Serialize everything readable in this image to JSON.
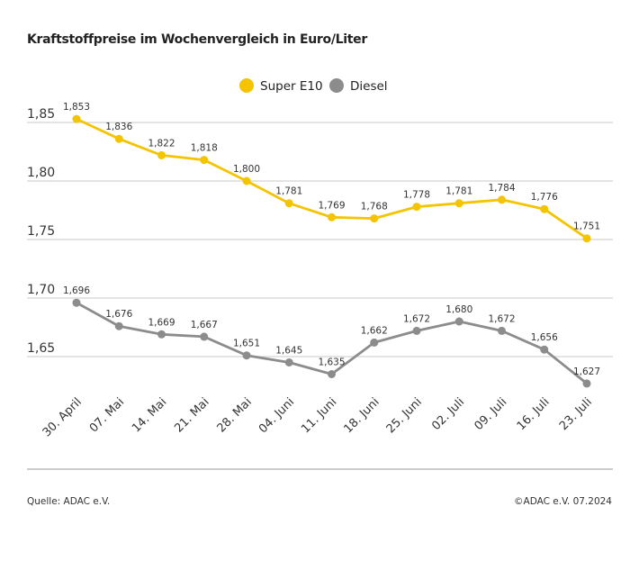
{
  "chart_data": {
    "type": "line",
    "title": "Kraftstoffpreise im Wochenvergleich in Euro/Liter",
    "categories": [
      "30. April",
      "07. Mai",
      "14. Mai",
      "21. Mai",
      "28. Mai",
      "04. Juni",
      "11. Juni",
      "18. Juni",
      "25. Juni",
      "02. Juli",
      "09. Juli",
      "16. Juli",
      "23. Juli"
    ],
    "series": [
      {
        "name": "Super E10",
        "color": "#f5c400",
        "values": [
          1.853,
          1.836,
          1.822,
          1.818,
          1.8,
          1.781,
          1.769,
          1.768,
          1.778,
          1.781,
          1.784,
          1.776,
          1.751
        ],
        "labels": [
          "1,853",
          "1,836",
          "1,822",
          "1,818",
          "1,800",
          "1,781",
          "1,769",
          "1,768",
          "1,778",
          "1,781",
          "1,784",
          "1,776",
          "1,751"
        ]
      },
      {
        "name": "Diesel",
        "color": "#8c8c8c",
        "values": [
          1.696,
          1.676,
          1.669,
          1.667,
          1.651,
          1.645,
          1.635,
          1.662,
          1.672,
          1.68,
          1.672,
          1.656,
          1.627
        ],
        "labels": [
          "1,696",
          "1,676",
          "1,669",
          "1,667",
          "1,651",
          "1,645",
          "1,635",
          "1,662",
          "1,672",
          "1,680",
          "1,672",
          "1,656",
          "1,627"
        ]
      }
    ],
    "yticks": [
      1.85,
      1.8,
      1.75,
      1.7,
      1.65
    ],
    "ytick_labels": [
      "1,85",
      "1,80",
      "1,75",
      "1,70",
      "1,65"
    ],
    "grid": true,
    "legend": "top-center"
  },
  "footer": {
    "source": "Quelle: ADAC e.V.",
    "copyright": "©ADAC e.V. 07.2024"
  }
}
